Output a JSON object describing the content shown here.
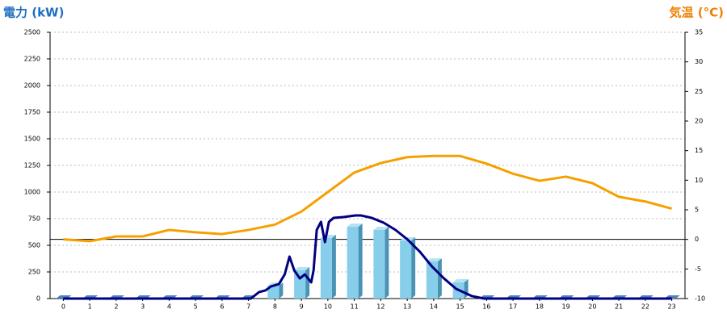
{
  "chart_data": {
    "type": "bar",
    "y_label": "電力 (kW)",
    "y2_label": "気温 (°C)",
    "categories": [
      "0",
      "1",
      "2",
      "3",
      "4",
      "5",
      "6",
      "7",
      "8",
      "9",
      "10",
      "11",
      "12",
      "13",
      "14",
      "15",
      "16",
      "17",
      "18",
      "19",
      "20",
      "21",
      "22",
      "23"
    ],
    "series": [
      {
        "type": "bar",
        "color": "#87ceeb",
        "values": [
          0,
          0,
          0,
          0,
          0,
          0,
          0,
          0,
          121,
          265,
          568,
          674,
          644,
          545,
          348,
          152,
          0,
          0,
          0,
          0,
          0,
          0,
          0,
          0
        ]
      },
      {
        "type": "line",
        "color": "#000080",
        "x": [
          0,
          7.09,
          7.4,
          7.64,
          7.85,
          8.15,
          8.37,
          8.55,
          8.73,
          8.94,
          9.13,
          9.37,
          9.46,
          9.58,
          9.74,
          9.89,
          10.04,
          10.22,
          10.59,
          11.04,
          11.26,
          11.65,
          12.11,
          12.56,
          13.02,
          13.48,
          13.93,
          14.39,
          14.85,
          15.45,
          15.9,
          23
        ],
        "values": [
          0,
          0,
          61,
          76,
          114,
          136,
          227,
          394,
          265,
          189,
          227,
          152,
          265,
          644,
          720,
          530,
          720,
          758,
          765,
          780,
          780,
          758,
          712,
          644,
          553,
          439,
          303,
          189,
          91,
          23,
          0,
          0
        ]
      },
      {
        "type": "line",
        "axis": "y2",
        "color": "#f5a000",
        "values": [
          0,
          -0.3,
          0.5,
          0.5,
          1.6,
          1.2,
          0.9,
          1.6,
          2.5,
          4.7,
          8.0,
          11.3,
          12.9,
          13.9,
          14.1,
          14.1,
          12.8,
          11.1,
          9.9,
          10.6,
          9.5,
          7.2,
          6.4,
          5.2
        ]
      }
    ],
    "ylim": [
      0,
      2500
    ],
    "yticks": [
      0,
      250,
      500,
      750,
      1000,
      1250,
      1500,
      1750,
      2000,
      2250,
      2500
    ],
    "y2lim": [
      -10,
      35
    ],
    "y2ticks": [
      -10,
      -5,
      0,
      5,
      10,
      15,
      20,
      25,
      30,
      35
    ],
    "reference_line": {
      "axis": "y2",
      "value": 0
    },
    "grid": true
  }
}
